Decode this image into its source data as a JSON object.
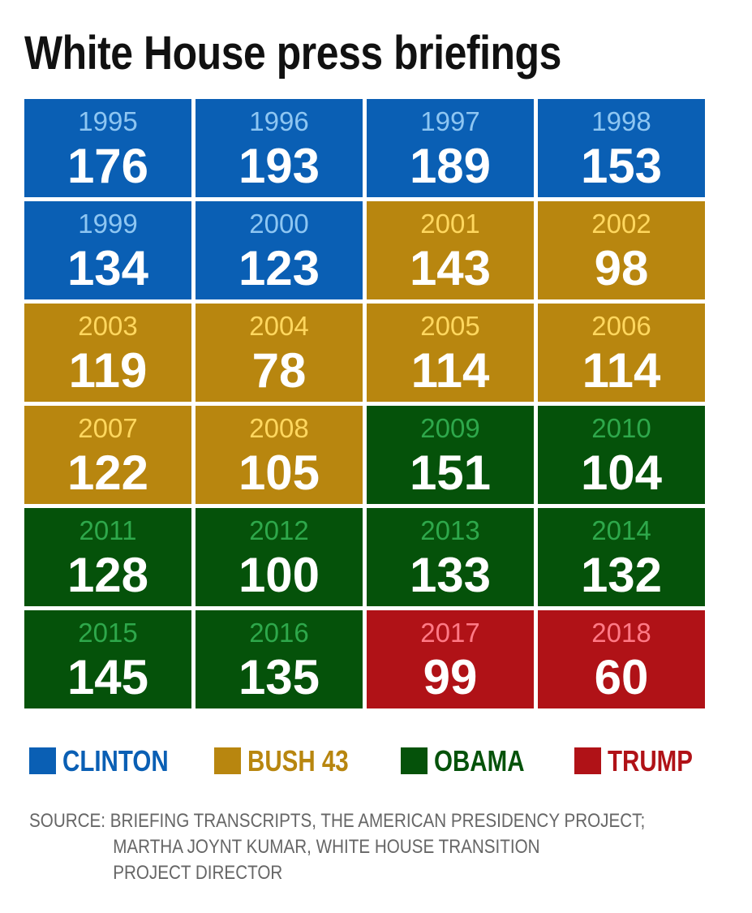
{
  "title": "White House press briefings",
  "presidents": {
    "clinton": {
      "label": "CLINTON",
      "fill": "#0a5fb4",
      "year_color": "#8ec6f2",
      "label_color": "#0a5fb4"
    },
    "bush": {
      "label": "BUSH 43",
      "fill": "#b8860f",
      "year_color": "#ffd75e",
      "label_color": "#b8860f"
    },
    "obama": {
      "label": "OBAMA",
      "fill": "#05520a",
      "year_color": "#2ea84b",
      "label_color": "#05520a"
    },
    "trump": {
      "label": "TRUMP",
      "fill": "#b01217",
      "year_color": "#ff7a86",
      "label_color": "#b01217"
    }
  },
  "legend": [
    {
      "key": "clinton",
      "label": "CLINTON"
    },
    {
      "key": "bush",
      "label": "BUSH 43"
    },
    {
      "key": "obama",
      "label": "OBAMA"
    },
    {
      "key": "trump",
      "label": "TRUMP"
    }
  ],
  "chart_data": {
    "type": "table",
    "title": "White House press briefings",
    "columns": 4,
    "cells": [
      {
        "year": "1995",
        "value": 176,
        "president": "clinton"
      },
      {
        "year": "1996",
        "value": 193,
        "president": "clinton"
      },
      {
        "year": "1997",
        "value": 189,
        "president": "clinton"
      },
      {
        "year": "1998",
        "value": 153,
        "president": "clinton"
      },
      {
        "year": "1999",
        "value": 134,
        "president": "clinton"
      },
      {
        "year": "2000",
        "value": 123,
        "president": "clinton"
      },
      {
        "year": "2001",
        "value": 143,
        "president": "bush"
      },
      {
        "year": "2002",
        "value": 98,
        "president": "bush"
      },
      {
        "year": "2003",
        "value": 119,
        "president": "bush"
      },
      {
        "year": "2004",
        "value": 78,
        "president": "bush"
      },
      {
        "year": "2005",
        "value": 114,
        "president": "bush"
      },
      {
        "year": "2006",
        "value": 114,
        "president": "bush"
      },
      {
        "year": "2007",
        "value": 122,
        "president": "bush"
      },
      {
        "year": "2008",
        "value": 105,
        "president": "bush"
      },
      {
        "year": "2009",
        "value": 151,
        "president": "obama"
      },
      {
        "year": "2010",
        "value": 104,
        "president": "obama"
      },
      {
        "year": "2011",
        "value": 128,
        "president": "obama"
      },
      {
        "year": "2012",
        "value": 100,
        "president": "obama"
      },
      {
        "year": "2013",
        "value": 133,
        "president": "obama"
      },
      {
        "year": "2014",
        "value": 132,
        "president": "obama"
      },
      {
        "year": "2015",
        "value": 145,
        "president": "obama"
      },
      {
        "year": "2016",
        "value": 135,
        "president": "obama"
      },
      {
        "year": "2017",
        "value": 99,
        "president": "trump"
      },
      {
        "year": "2018",
        "value": 60,
        "president": "trump"
      }
    ]
  },
  "source": {
    "lines": [
      "SOURCE: BRIEFING TRANSCRIPTS, THE AMERICAN PRESIDENCY PROJECT;",
      "MARTHA JOYNT KUMAR, WHITE HOUSE TRANSITION",
      "PROJECT DIRECTOR"
    ]
  }
}
